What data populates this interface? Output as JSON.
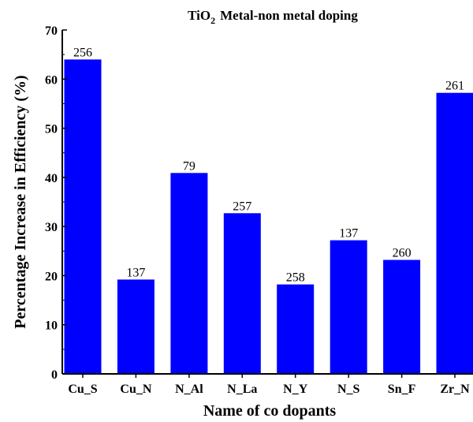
{
  "chart_data": {
    "type": "bar",
    "title_main": "TiO",
    "title_sub": "2",
    "title_rest": "Metal-non metal doping",
    "xlabel": "Name of co dopants",
    "ylabel": "Percentage Increase in Efficiency (%)",
    "categories": [
      "Cu_S",
      "Cu_N",
      "N_Al",
      "N_La",
      "N_Y",
      "N_S",
      "Sn_F",
      "Zr_N"
    ],
    "values": [
      64,
      19.2,
      40.9,
      32.7,
      18.2,
      27.2,
      23.2,
      57.2
    ],
    "data_labels": [
      "256",
      "137",
      "79",
      "257",
      "258",
      "137",
      "260",
      "261"
    ],
    "ylim": [
      0,
      70
    ],
    "yticks": [
      0,
      10,
      20,
      30,
      40,
      50,
      60,
      70
    ],
    "ytick_labels": [
      "0",
      "10",
      "20",
      "30",
      "40",
      "50",
      "60",
      "70"
    ],
    "bar_color": "#0000ff",
    "grid": false,
    "legend": "none"
  }
}
